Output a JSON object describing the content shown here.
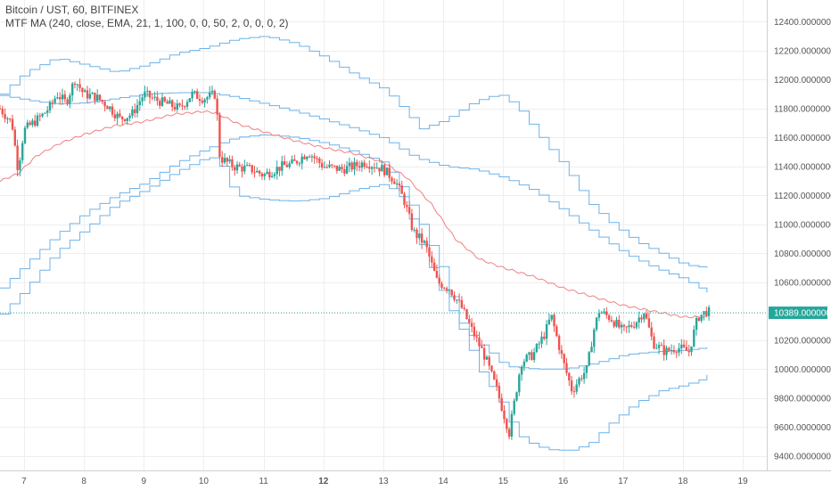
{
  "legend": {
    "symbol": "Bitcoin / UST, 60, BITFINEX",
    "indicator": "MTF MA (240, close, EMA, 21, 1, 100, 0, 0, 50, 2, 0, 0, 0, 2)"
  },
  "colors": {
    "up": "#26a69a",
    "down": "#ef5350",
    "band": "#6fb3e8",
    "ma": "#f08080",
    "price_line": "#26a69a",
    "grid": "#eeeeee",
    "axis_text": "#555555"
  },
  "chart_data": {
    "type": "candlestick",
    "x_axis": {
      "min_day": 6.6,
      "max_day": 19.4,
      "ticks": [
        {
          "day": 7,
          "label": "7",
          "bold": false
        },
        {
          "day": 8,
          "label": "8",
          "bold": false
        },
        {
          "day": 9,
          "label": "9",
          "bold": false
        },
        {
          "day": 10,
          "label": "10",
          "bold": false
        },
        {
          "day": 11,
          "label": "11",
          "bold": false
        },
        {
          "day": 12,
          "label": "12",
          "bold": true
        },
        {
          "day": 13,
          "label": "13",
          "bold": false
        },
        {
          "day": 14,
          "label": "14",
          "bold": false
        },
        {
          "day": 15,
          "label": "15",
          "bold": false
        },
        {
          "day": 16,
          "label": "16",
          "bold": false
        },
        {
          "day": 17,
          "label": "17",
          "bold": false
        },
        {
          "day": 18,
          "label": "18",
          "bold": false
        },
        {
          "day": 19,
          "label": "19",
          "bold": false
        }
      ]
    },
    "y_axis": {
      "min": 9300,
      "max": 12550,
      "ticks": [
        "12400.00000000",
        "12200.00000000",
        "12000.00000000",
        "11800.00000000",
        "11600.00000000",
        "11400.00000000",
        "11200.00000000",
        "11000.00000000",
        "10800.00000000",
        "10600.00000000",
        "10200.00000000",
        "10000.00000000",
        "9800.00000000",
        "9600.00000000",
        "9400.00000000"
      ]
    },
    "last_price": "10389.00000000",
    "last_price_value": 10389,
    "close_path": [
      [
        6.6,
        11800
      ],
      [
        6.8,
        11700
      ],
      [
        6.9,
        11380
      ],
      [
        7.0,
        11650
      ],
      [
        7.3,
        11750
      ],
      [
        7.45,
        11820
      ],
      [
        7.55,
        11900
      ],
      [
        7.7,
        11840
      ],
      [
        7.85,
        12000
      ],
      [
        8.0,
        11900
      ],
      [
        8.2,
        11880
      ],
      [
        8.4,
        11820
      ],
      [
        8.6,
        11730
      ],
      [
        8.8,
        11760
      ],
      [
        9.0,
        11900
      ],
      [
        9.2,
        11860
      ],
      [
        9.4,
        11830
      ],
      [
        9.6,
        11800
      ],
      [
        9.8,
        11900
      ],
      [
        10.0,
        11870
      ],
      [
        10.2,
        11900
      ],
      [
        10.27,
        11460
      ],
      [
        10.5,
        11400
      ],
      [
        10.8,
        11380
      ],
      [
        11.0,
        11340
      ],
      [
        11.3,
        11400
      ],
      [
        11.5,
        11420
      ],
      [
        11.75,
        11500
      ],
      [
        12.0,
        11400
      ],
      [
        12.3,
        11380
      ],
      [
        12.5,
        11400
      ],
      [
        12.7,
        11430
      ],
      [
        13.0,
        11380
      ],
      [
        13.2,
        11300
      ],
      [
        13.35,
        11160
      ],
      [
        13.5,
        10950
      ],
      [
        13.7,
        10860
      ],
      [
        13.9,
        10600
      ],
      [
        14.1,
        10560
      ],
      [
        14.3,
        10430
      ],
      [
        14.5,
        10250
      ],
      [
        14.7,
        10080
      ],
      [
        14.9,
        9850
      ],
      [
        15.1,
        9560
      ],
      [
        15.3,
        10050
      ],
      [
        15.5,
        10100
      ],
      [
        15.7,
        10250
      ],
      [
        15.8,
        10370
      ],
      [
        16.0,
        10050
      ],
      [
        16.15,
        9850
      ],
      [
        16.3,
        9950
      ],
      [
        16.4,
        10000
      ],
      [
        16.5,
        10250
      ],
      [
        16.6,
        10400
      ],
      [
        16.8,
        10350
      ],
      [
        17.0,
        10260
      ],
      [
        17.2,
        10320
      ],
      [
        17.35,
        10400
      ],
      [
        17.5,
        10180
      ],
      [
        17.7,
        10120
      ],
      [
        17.9,
        10150
      ],
      [
        18.1,
        10120
      ],
      [
        18.25,
        10360
      ],
      [
        18.4,
        10400
      ],
      [
        18.45,
        10389
      ]
    ],
    "ma_line": [
      [
        6.6,
        11300
      ],
      [
        6.9,
        11350
      ],
      [
        7.2,
        11470
      ],
      [
        7.6,
        11560
      ],
      [
        8.0,
        11620
      ],
      [
        8.5,
        11680
      ],
      [
        9.0,
        11710
      ],
      [
        9.5,
        11760
      ],
      [
        10.0,
        11780
      ],
      [
        10.2,
        11770
      ],
      [
        10.6,
        11690
      ],
      [
        11.0,
        11640
      ],
      [
        11.5,
        11580
      ],
      [
        12.0,
        11530
      ],
      [
        12.5,
        11490
      ],
      [
        13.0,
        11430
      ],
      [
        13.4,
        11320
      ],
      [
        13.8,
        11140
      ],
      [
        14.2,
        10900
      ],
      [
        14.6,
        10760
      ],
      [
        15.0,
        10700
      ],
      [
        15.5,
        10640
      ],
      [
        16.0,
        10560
      ],
      [
        16.5,
        10500
      ],
      [
        17.0,
        10440
      ],
      [
        17.5,
        10400
      ],
      [
        18.0,
        10360
      ],
      [
        18.4,
        10360
      ]
    ],
    "band_lines": [
      [
        [
          6.6,
          11900
        ],
        [
          7.0,
          12050
        ],
        [
          7.5,
          12150
        ],
        [
          8.0,
          12100
        ],
        [
          8.5,
          12050
        ],
        [
          9.0,
          12100
        ],
        [
          9.5,
          12180
        ],
        [
          10.0,
          12220
        ],
        [
          10.5,
          12280
        ],
        [
          11.0,
          12300
        ],
        [
          11.5,
          12250
        ],
        [
          12.0,
          12150
        ],
        [
          12.5,
          12030
        ],
        [
          13.0,
          11930
        ],
        [
          13.3,
          11800
        ],
        [
          13.6,
          11660
        ],
        [
          14.0,
          11720
        ],
        [
          14.5,
          11850
        ],
        [
          14.9,
          11900
        ],
        [
          15.2,
          11820
        ],
        [
          15.6,
          11600
        ],
        [
          16.0,
          11400
        ],
        [
          16.4,
          11150
        ],
        [
          16.8,
          11000
        ],
        [
          17.2,
          10880
        ],
        [
          17.6,
          10800
        ],
        [
          18.0,
          10720
        ],
        [
          18.4,
          10700
        ]
      ],
      [
        [
          6.6,
          11890
        ],
        [
          7.0,
          11860
        ],
        [
          7.5,
          11830
        ],
        [
          8.0,
          11840
        ],
        [
          8.5,
          11870
        ],
        [
          9.0,
          11900
        ],
        [
          9.5,
          11910
        ],
        [
          10.0,
          11910
        ],
        [
          10.5,
          11880
        ],
        [
          11.0,
          11830
        ],
        [
          11.5,
          11780
        ],
        [
          12.0,
          11720
        ],
        [
          12.5,
          11660
        ],
        [
          13.0,
          11590
        ],
        [
          13.5,
          11460
        ],
        [
          14.0,
          11400
        ],
        [
          14.5,
          11380
        ],
        [
          15.0,
          11320
        ],
        [
          15.5,
          11230
        ],
        [
          16.0,
          11090
        ],
        [
          16.5,
          10940
        ],
        [
          17.0,
          10800
        ],
        [
          17.5,
          10700
        ],
        [
          18.0,
          10620
        ],
        [
          18.4,
          10530
        ]
      ],
      [
        [
          6.6,
          10560
        ],
        [
          7.0,
          10720
        ],
        [
          7.5,
          10920
        ],
        [
          8.0,
          11080
        ],
        [
          8.5,
          11200
        ],
        [
          9.0,
          11290
        ],
        [
          9.5,
          11420
        ],
        [
          10.0,
          11520
        ],
        [
          10.5,
          11600
        ],
        [
          11.0,
          11620
        ],
        [
          11.5,
          11600
        ],
        [
          12.0,
          11560
        ],
        [
          12.5,
          11500
        ],
        [
          13.0,
          11420
        ],
        [
          13.3,
          11240
        ],
        [
          13.6,
          11000
        ],
        [
          14.0,
          10650
        ],
        [
          14.2,
          10350
        ],
        [
          14.5,
          10200
        ],
        [
          14.8,
          10100
        ],
        [
          15.0,
          10020
        ],
        [
          15.5,
          10000
        ],
        [
          16.0,
          10000
        ],
        [
          16.5,
          10040
        ],
        [
          17.0,
          10100
        ],
        [
          17.5,
          10120
        ],
        [
          18.0,
          10130
        ],
        [
          18.4,
          10150
        ]
      ],
      [
        [
          6.6,
          10380
        ],
        [
          7.0,
          10550
        ],
        [
          7.5,
          10800
        ],
        [
          8.0,
          10970
        ],
        [
          8.5,
          11140
        ],
        [
          9.0,
          11240
        ],
        [
          9.5,
          11360
        ],
        [
          10.0,
          11460
        ],
        [
          10.2,
          11460
        ],
        [
          10.5,
          11200
        ],
        [
          11.0,
          11170
        ],
        [
          11.5,
          11160
        ],
        [
          12.0,
          11180
        ],
        [
          12.5,
          11240
        ],
        [
          13.0,
          11280
        ],
        [
          13.3,
          11180
        ],
        [
          13.6,
          10860
        ],
        [
          14.0,
          10480
        ],
        [
          14.3,
          10250
        ],
        [
          14.6,
          9980
        ],
        [
          14.9,
          9800
        ],
        [
          15.2,
          9550
        ],
        [
          15.5,
          9470
        ],
        [
          15.8,
          9440
        ],
        [
          16.1,
          9440
        ],
        [
          16.4,
          9480
        ],
        [
          16.8,
          9640
        ],
        [
          17.2,
          9770
        ],
        [
          17.6,
          9850
        ],
        [
          18.0,
          9890
        ],
        [
          18.3,
          9930
        ],
        [
          18.4,
          9960
        ]
      ]
    ]
  }
}
